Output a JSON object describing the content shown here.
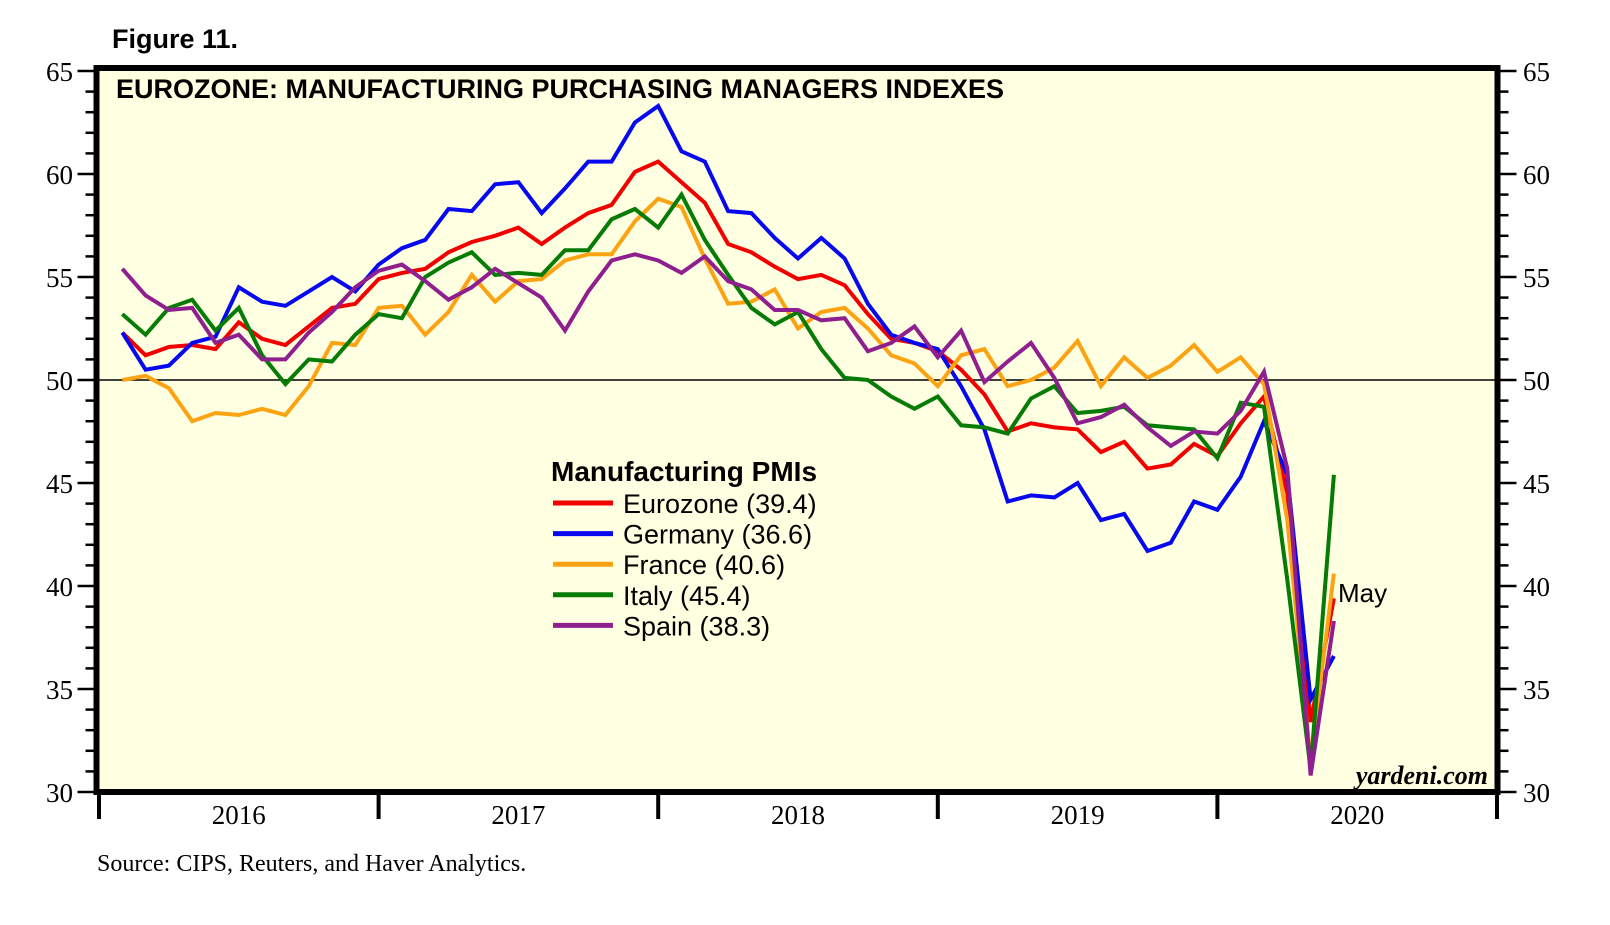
{
  "figure_label": "Figure 11.",
  "chart_title": "EUROZONE: MANUFACTURING PURCHASING MANAGERS INDEXES",
  "source_note": "Source: CIPS, Reuters, and Haver Analytics.",
  "watermark": "yardeni.com",
  "annotation": {
    "label": "May",
    "color": "#F5232E",
    "points_to": "latest month (May 2020)"
  },
  "legend": {
    "title": "Manufacturing PMIs"
  },
  "chart_data": {
    "type": "line",
    "title": "EUROZONE: MANUFACTURING PURCHASING MANAGERS INDEXES",
    "x_unit": "month",
    "x_start": "2016-01",
    "x_end": "2020-05",
    "plot_background": "#FFFFE1",
    "grid": "off",
    "reference_line_y": 50,
    "x_axis": {
      "months_in_domain": 60,
      "year_labels": [
        "2016",
        "2017",
        "2018",
        "2019",
        "2020"
      ],
      "year_boundary_ticks": 6
    },
    "y_axis": {
      "min": 30,
      "max": 65,
      "major_step": 5,
      "minor_step": 1,
      "sides": "both",
      "major_tick_labels": [
        30,
        35,
        40,
        45,
        50,
        55,
        60,
        65
      ]
    },
    "legend_position": "inside-center-left",
    "series": [
      {
        "name": "Eurozone",
        "legend_label": "Eurozone (39.4)",
        "latest_value": 39.4,
        "color": "#F20000",
        "values": [
          52.3,
          51.2,
          51.6,
          51.7,
          51.5,
          52.8,
          52.0,
          51.7,
          52.6,
          53.5,
          53.7,
          54.9,
          55.2,
          55.4,
          56.2,
          56.7,
          57.0,
          57.4,
          56.6,
          57.4,
          58.1,
          58.5,
          60.1,
          60.6,
          59.6,
          58.6,
          56.6,
          56.2,
          55.5,
          54.9,
          55.1,
          54.6,
          53.2,
          52.0,
          51.8,
          51.4,
          50.5,
          49.3,
          47.5,
          47.9,
          47.7,
          47.6,
          46.5,
          47.0,
          45.7,
          45.9,
          46.9,
          46.3,
          47.9,
          49.2,
          44.5,
          33.4,
          39.4
        ]
      },
      {
        "name": "Germany",
        "legend_label": "Germany (36.6)",
        "latest_value": 36.6,
        "color": "#0808F0",
        "values": [
          52.3,
          50.5,
          50.7,
          51.8,
          52.1,
          54.5,
          53.8,
          53.6,
          54.3,
          55.0,
          54.3,
          55.6,
          56.4,
          56.8,
          58.3,
          58.2,
          59.5,
          59.6,
          58.1,
          59.3,
          60.6,
          60.6,
          62.5,
          63.3,
          61.1,
          60.6,
          58.2,
          58.1,
          56.9,
          55.9,
          56.9,
          55.9,
          53.7,
          52.2,
          51.8,
          51.5,
          49.7,
          47.6,
          44.1,
          44.4,
          44.3,
          45.0,
          43.2,
          43.5,
          41.7,
          42.1,
          44.1,
          43.7,
          45.3,
          48.0,
          45.4,
          34.5,
          36.6
        ]
      },
      {
        "name": "France",
        "legend_label": "France (40.6)",
        "latest_value": 40.6,
        "color": "#FCA313",
        "values": [
          50.0,
          50.2,
          49.6,
          48.0,
          48.4,
          48.3,
          48.6,
          48.3,
          49.7,
          51.8,
          51.7,
          53.5,
          53.6,
          52.2,
          53.3,
          55.1,
          53.8,
          54.8,
          54.9,
          55.8,
          56.1,
          56.1,
          57.7,
          58.8,
          58.4,
          55.9,
          53.7,
          53.8,
          54.4,
          52.5,
          53.3,
          53.5,
          52.5,
          51.2,
          50.8,
          49.7,
          51.2,
          51.5,
          49.7,
          50.0,
          50.6,
          51.9,
          49.7,
          51.1,
          50.1,
          50.7,
          51.7,
          50.4,
          51.1,
          49.8,
          43.2,
          31.5,
          40.6
        ]
      },
      {
        "name": "Italy",
        "legend_label": "Italy (45.4)",
        "latest_value": 45.4,
        "color": "#067B06",
        "values": [
          53.2,
          52.2,
          53.5,
          53.9,
          52.4,
          53.5,
          51.2,
          49.8,
          51.0,
          50.9,
          52.2,
          53.2,
          53.0,
          55.0,
          55.7,
          56.2,
          55.1,
          55.2,
          55.1,
          56.3,
          56.3,
          57.8,
          58.3,
          57.4,
          59.0,
          56.8,
          55.1,
          53.5,
          52.7,
          53.3,
          51.5,
          50.1,
          50.0,
          49.2,
          48.6,
          49.2,
          47.8,
          47.7,
          47.4,
          49.1,
          49.7,
          48.4,
          48.5,
          48.7,
          47.8,
          47.7,
          47.6,
          46.2,
          48.9,
          48.7,
          40.3,
          31.1,
          45.4
        ]
      },
      {
        "name": "Spain",
        "legend_label": "Spain (38.3)",
        "latest_value": 38.3,
        "color": "#8F1F8F",
        "values": [
          55.4,
          54.1,
          53.4,
          53.5,
          51.8,
          52.2,
          51.0,
          51.0,
          52.3,
          53.3,
          54.5,
          55.3,
          55.6,
          54.8,
          53.9,
          54.5,
          55.4,
          54.7,
          54.0,
          52.4,
          54.3,
          55.8,
          56.1,
          55.8,
          55.2,
          56.0,
          54.8,
          54.4,
          53.4,
          53.4,
          52.9,
          53.0,
          51.4,
          51.8,
          52.6,
          51.1,
          52.4,
          49.9,
          50.9,
          51.8,
          50.1,
          47.9,
          48.2,
          48.8,
          47.7,
          46.8,
          47.5,
          47.4,
          48.5,
          50.4,
          45.7,
          30.8,
          38.3
        ]
      }
    ]
  }
}
